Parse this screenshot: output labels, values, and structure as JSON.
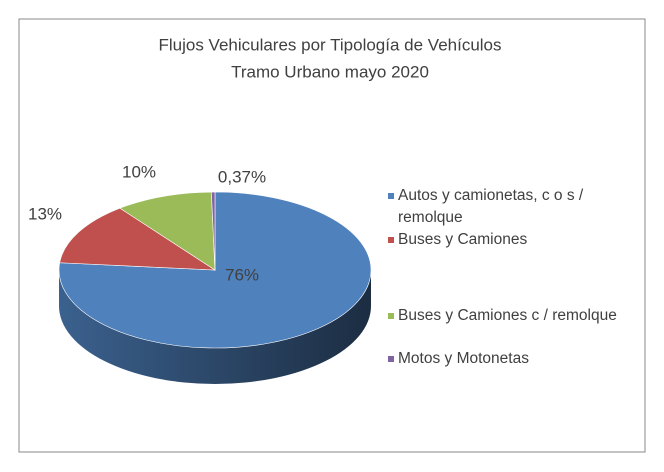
{
  "chart_data": {
    "type": "pie3d",
    "title": "Flujos Vehiculares por Tipología de Vehículos",
    "subtitle": "Tramo Urbano mayo 2020",
    "categories": [
      "Autos y camionetas, c o s / remolque",
      "Buses y Camiones",
      "Buses y Camiones c / remolque",
      "Motos y Motonetas"
    ],
    "values": [
      76,
      13,
      10,
      0.37
    ],
    "value_labels": [
      "76%",
      "13%",
      "10%",
      "0,37%"
    ],
    "colors": [
      "#4f81bd",
      "#c0504d",
      "#9bbb59",
      "#8064a2"
    ],
    "legend": "right"
  }
}
